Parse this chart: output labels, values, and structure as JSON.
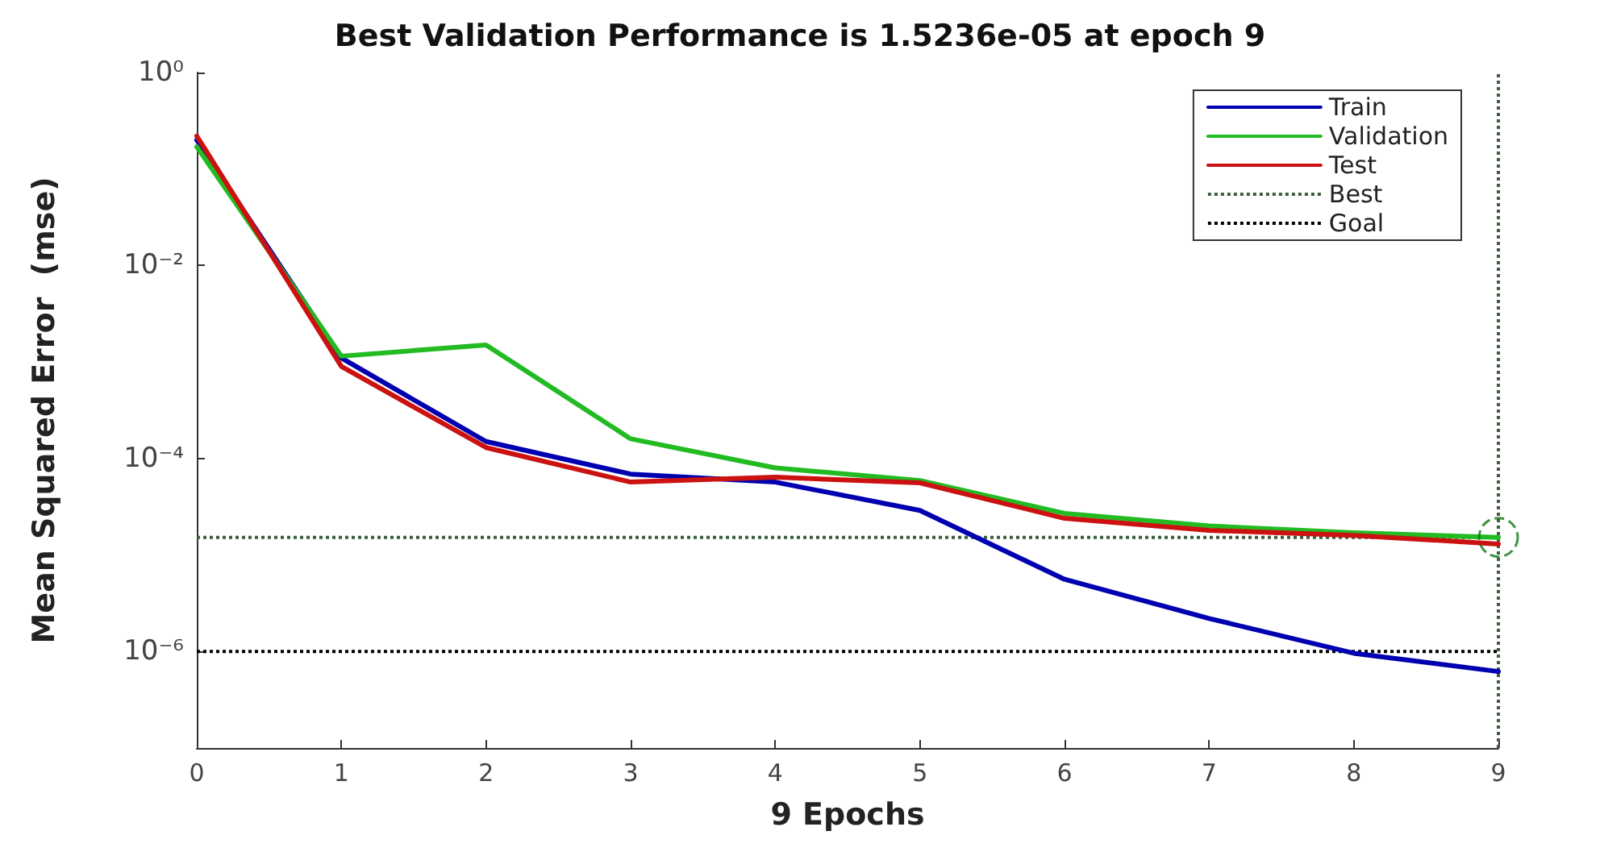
{
  "chart_data": {
    "type": "line",
    "title": "Best Validation Performance is 1.5236e-05 at epoch 9",
    "xlabel": "9 Epochs",
    "ylabel": "Mean Squared Error  (mse)",
    "x": [
      0,
      1,
      2,
      3,
      4,
      5,
      6,
      7,
      8,
      9
    ],
    "series": [
      {
        "name": "Train",
        "color": "#0000b0",
        "values": [
          0.2,
          0.0011,
          0.00015,
          6.9e-05,
          5.7e-05,
          2.9e-05,
          5.6e-06,
          2.2e-06,
          9.6e-07,
          6.2e-07
        ]
      },
      {
        "name": "Validation",
        "color": "#22bb22",
        "values": [
          0.17,
          0.00115,
          0.0015,
          0.00016,
          8e-05,
          5.9e-05,
          2.7e-05,
          2e-05,
          1.7e-05,
          1.5236e-05
        ]
      },
      {
        "name": "Test",
        "color": "#cc1111",
        "values": [
          0.22,
          0.0009,
          0.00013,
          5.7e-05,
          6.4e-05,
          5.6e-05,
          2.4e-05,
          1.8e-05,
          1.6e-05,
          1.3e-05
        ]
      },
      {
        "type": "scatter",
        "marker": "circle",
        "color": "#117711",
        "x": [
          9
        ],
        "values": [
          1.5236e-05
        ]
      }
    ],
    "ref_lines": [
      {
        "axis": "y",
        "value": 1.5236e-05,
        "label": "Best",
        "color": "#3d5e3d",
        "line_style": "dotted"
      },
      {
        "axis": "x",
        "value": 9,
        "color": "#3d5e3d",
        "line_style": "dotted"
      },
      {
        "axis": "y",
        "value": 1e-06,
        "label": "Goal",
        "color": "#000000",
        "line_style": "dotted"
      }
    ],
    "marker": "none",
    "line_style": "solid",
    "log": "y",
    "grid": false,
    "legend": "top right",
    "xlim": [
      0,
      9
    ],
    "xticks": [
      0,
      1,
      2,
      3,
      4,
      5,
      6,
      7,
      8,
      9
    ],
    "ylim": [
      1e-07,
      1
    ],
    "yticks": [
      {
        "value": 1,
        "label": "10⁰"
      },
      {
        "value": 0.01,
        "label": "10⁻²"
      },
      {
        "value": 0.0001,
        "label": "10⁻⁴"
      },
      {
        "value": 1e-06,
        "label": "10⁻⁶"
      }
    ]
  }
}
